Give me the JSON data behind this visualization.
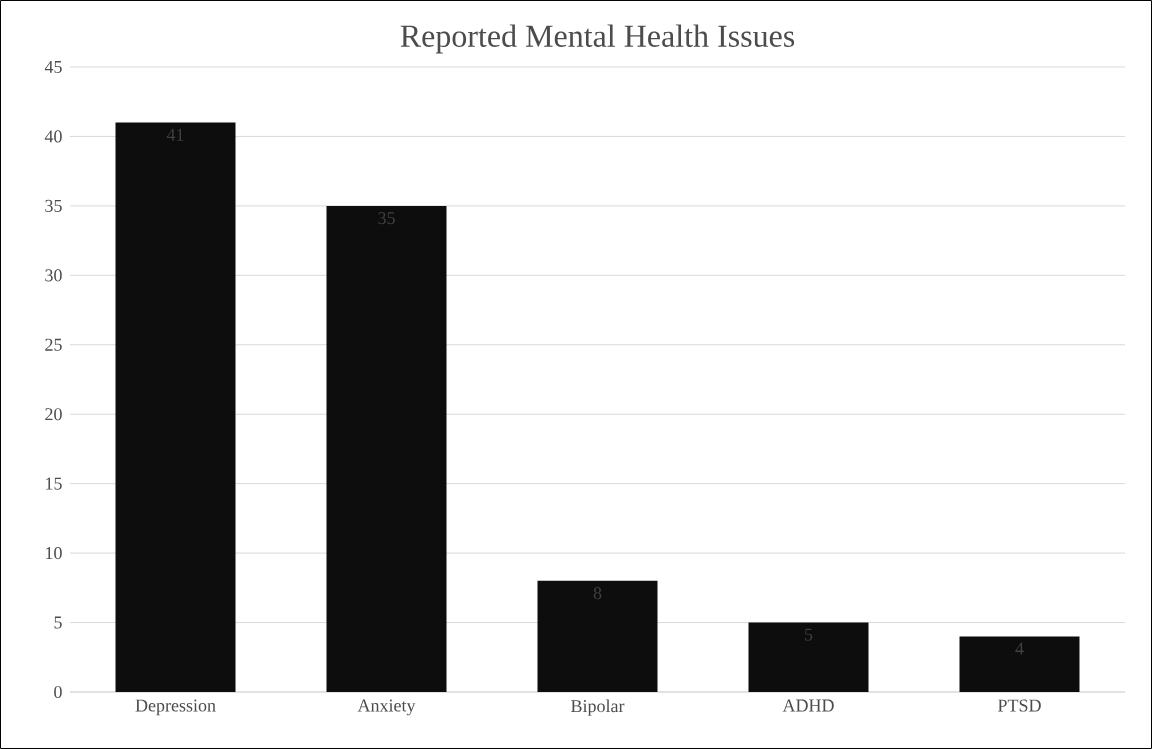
{
  "chart_data": {
    "type": "bar",
    "title": "Reported Mental Health Issues",
    "categories": [
      "Depression",
      "Anxiety",
      "Bipolar",
      "ADHD",
      "PTSD"
    ],
    "values": [
      41,
      35,
      8,
      5,
      4
    ],
    "color": "#0d0d0d",
    "ylim": [
      0,
      45
    ],
    "yticks": [
      0,
      5,
      10,
      15,
      20,
      25,
      30,
      35,
      40,
      45
    ],
    "grid": "y",
    "data_labels": true
  }
}
